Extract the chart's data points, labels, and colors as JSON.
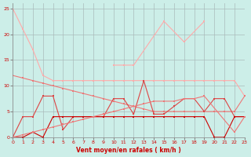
{
  "x": [
    0,
    1,
    2,
    3,
    4,
    5,
    6,
    7,
    8,
    9,
    10,
    11,
    12,
    13,
    14,
    15,
    16,
    17,
    18,
    19,
    20,
    21,
    22,
    23
  ],
  "line_rafales_light": [
    25,
    21,
    17,
    12,
    11,
    11,
    11,
    11,
    11,
    11,
    11,
    11,
    11,
    11,
    11,
    11,
    11,
    11,
    11,
    11,
    11,
    11,
    11,
    8
  ],
  "line_gust_spikes": [
    null,
    null,
    null,
    null,
    null,
    null,
    null,
    null,
    null,
    null,
    14,
    14,
    14,
    null,
    null,
    22.5,
    null,
    18.5,
    null,
    22.5,
    null,
    null,
    null,
    null
  ],
  "line_medium_dec": [
    12,
    11.5,
    11,
    10.5,
    10,
    9.5,
    9,
    8.5,
    8,
    7.5,
    7,
    6.5,
    6,
    5.5,
    5,
    5,
    5,
    5,
    5,
    5,
    5,
    5,
    5,
    8
  ],
  "line_dark_vary": [
    0,
    4,
    4,
    8,
    8,
    1.5,
    4,
    4,
    4,
    4,
    7.5,
    7.5,
    4.5,
    11,
    4.5,
    4.5,
    6,
    7.5,
    7.5,
    5,
    7.5,
    7.5,
    4,
    4
  ],
  "line_darkest": [
    0,
    0,
    1,
    0,
    4,
    4,
    4,
    4,
    4,
    4,
    4,
    4,
    4,
    4,
    4,
    4,
    4,
    4,
    4,
    4,
    0,
    0,
    4,
    4
  ],
  "line_rising": [
    0,
    0.5,
    1,
    1.5,
    2,
    2.5,
    3,
    3.5,
    4,
    4.5,
    5,
    5.5,
    6,
    6.5,
    7,
    7,
    7,
    7.5,
    7.5,
    8,
    null,
    null,
    1,
    4
  ],
  "bg_color": "#cceee8",
  "grid_color": "#aabbbb",
  "color_vlight": "#ffaaaa",
  "color_light": "#ee7777",
  "color_medium": "#dd4444",
  "color_dark": "#cc0000",
  "xlabel": "Vent moyen/en rafales ( km/h )",
  "ylim": [
    0,
    26
  ],
  "xlim": [
    0,
    23
  ],
  "yticks": [
    0,
    5,
    10,
    15,
    20,
    25
  ],
  "xticks": [
    0,
    1,
    2,
    3,
    4,
    5,
    6,
    7,
    8,
    9,
    10,
    11,
    12,
    13,
    14,
    15,
    16,
    17,
    18,
    19,
    20,
    21,
    22,
    23
  ]
}
